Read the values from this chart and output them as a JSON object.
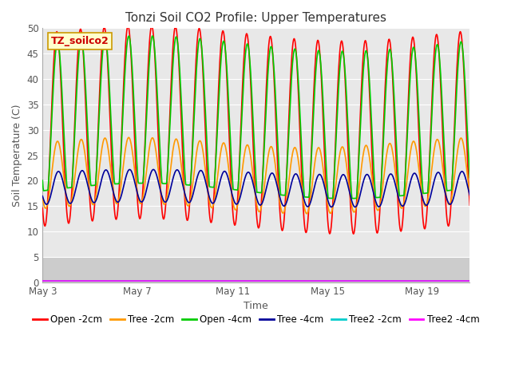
{
  "title": "Tonzi Soil CO2 Profile: Upper Temperatures",
  "xlabel": "Time",
  "ylabel": "Soil Temperature (C)",
  "label_box_text": "TZ_soilco2",
  "ylim": [
    0,
    50
  ],
  "yticks": [
    0,
    5,
    10,
    15,
    20,
    25,
    30,
    35,
    40,
    45,
    50
  ],
  "x_tick_labels": [
    "May 3",
    "May 7",
    "May 11",
    "May 15",
    "May 19"
  ],
  "x_tick_positions": [
    0,
    4,
    8,
    12,
    16
  ],
  "series": [
    {
      "label": "Open -2cm",
      "color": "#ff0000",
      "lw": 1.2
    },
    {
      "label": "Tree -2cm",
      "color": "#ff9900",
      "lw": 1.2
    },
    {
      "label": "Open -4cm",
      "color": "#00cc00",
      "lw": 1.2
    },
    {
      "label": "Tree -4cm",
      "color": "#000099",
      "lw": 1.2
    },
    {
      "label": "Tree2 -2cm",
      "color": "#00cccc",
      "lw": 1.2
    },
    {
      "label": "Tree2 -4cm",
      "color": "#ff00ff",
      "lw": 1.2
    }
  ],
  "bg_plot_color": "#e8e8e8",
  "bg_lower_color": "#cccccc",
  "grid_color": "#ffffff",
  "title_fontsize": 11,
  "axis_label_fontsize": 9,
  "tick_fontsize": 8.5,
  "legend_fontsize": 8.5,
  "fig_bg": "#ffffff"
}
